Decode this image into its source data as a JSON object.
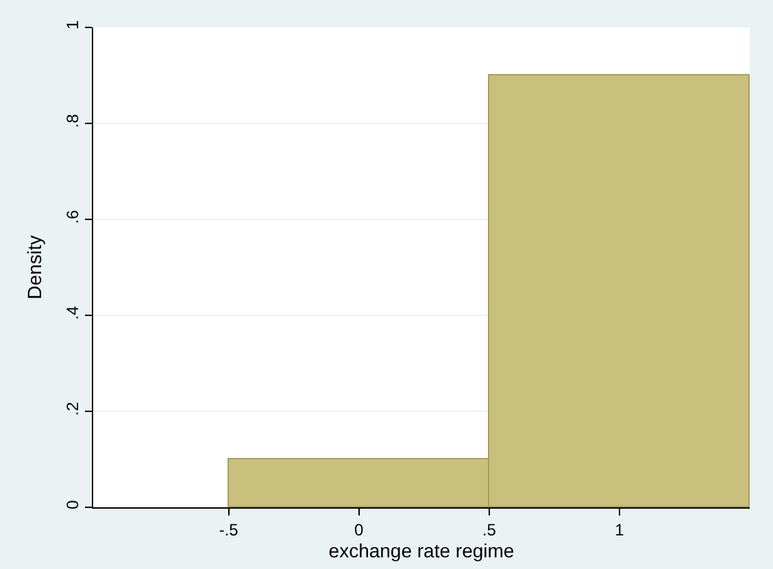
{
  "chart_data": {
    "type": "histogram",
    "xlabel": "exchange rate regime",
    "ylabel": "Density",
    "bins": [
      -0.5,
      0.5,
      1.5
    ],
    "values": [
      0.1,
      0.9
    ],
    "color": "#c9c07e",
    "xlim": [
      -1.02,
      1.5
    ],
    "xticks": [
      {
        "value": -0.5,
        "label": "-.5"
      },
      0,
      {
        "value": 0.5,
        "label": ".5"
      },
      1
    ],
    "ylim": [
      0,
      1.0
    ],
    "yticks": [
      0,
      {
        "value": 0.2,
        "label": ".2"
      },
      {
        "value": 0.4,
        "label": ".4"
      },
      {
        "value": 0.6,
        "label": ".6"
      },
      {
        "value": 0.8,
        "label": ".8"
      },
      1
    ],
    "grid": "y",
    "legend": false
  }
}
